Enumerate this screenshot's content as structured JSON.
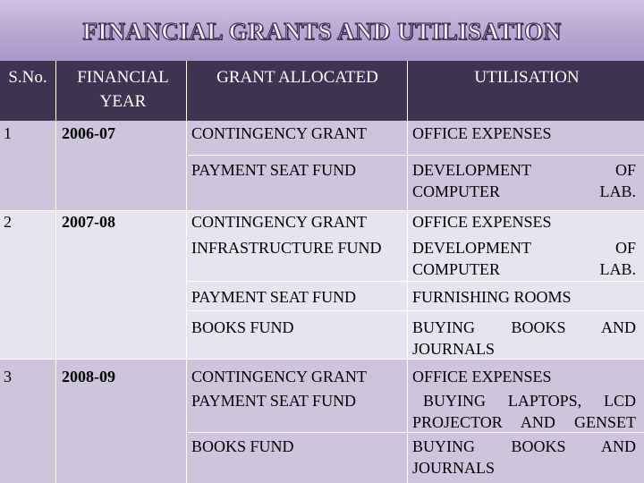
{
  "title": "FINANCIAL GRANTS AND UTILISATION",
  "columns": [
    "S.No.",
    "FINANCIAL YEAR",
    "GRANT ALLOCATED",
    "UTILISATION"
  ],
  "rows": [
    {
      "sno": "1",
      "year": "2006-07",
      "grants": [
        {
          "grant": "CONTINGENCY GRANT",
          "use": "OFFICE EXPENSES"
        },
        {
          "grant": "PAYMENT SEAT FUND",
          "use": "DEVELOPMENT OF COMPUTER LAB."
        }
      ]
    },
    {
      "sno": "2",
      "year": "2007-08",
      "grants": [
        {
          "grant": "CONTINGENCY GRANT",
          "use": "OFFICE EXPENSES"
        },
        {
          "grant": "INFRASTRUCTURE FUND",
          "use": "DEVELOPMENT OF COMPUTER LAB."
        },
        {
          "grant": "PAYMENT SEAT FUND",
          "use": "FURNISHING ROOMS"
        },
        {
          "grant": "BOOKS FUND",
          "use": "BUYING BOOKS AND JOURNALS"
        }
      ]
    },
    {
      "sno": "3",
      "year": "2008-09",
      "grants": [
        {
          "grant": "CONTINGENCY GRANT",
          "use": "OFFICE EXPENSES"
        },
        {
          "grant": "PAYMENT SEAT FUND",
          "use": "BUYING LAPTOPS, LCD PROJECTOR AND GENSET"
        },
        {
          "grant": "BOOKS FUND",
          "use": "BUYING BOOKS AND JOURNALS"
        }
      ]
    }
  ],
  "colors": {
    "header_bg": "#3e3350",
    "band_dark": "#cdc5dc",
    "band_light": "#e7e3ef",
    "banner_bg": "#b9a7d3"
  }
}
